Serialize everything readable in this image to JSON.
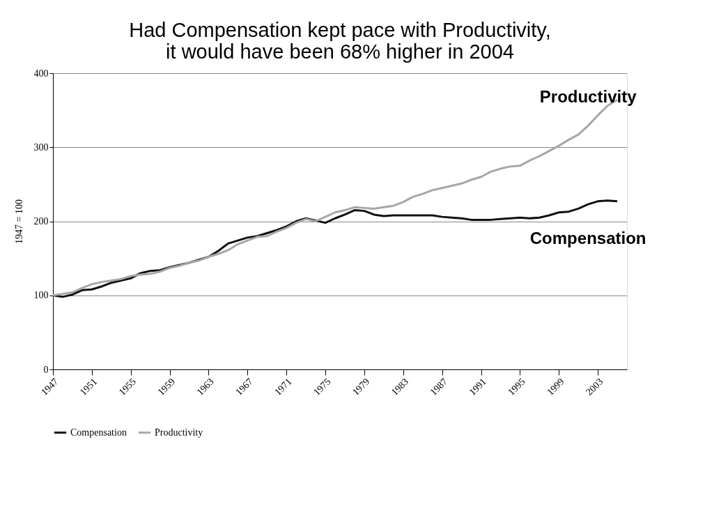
{
  "chart_data": {
    "type": "line",
    "title": [
      "Had Compensation kept pace with Productivity,",
      "it would have been 68% higher in 2004"
    ],
    "ylabel": "1947 = 100",
    "x": [
      1947,
      1948,
      1949,
      1950,
      1951,
      1952,
      1953,
      1954,
      1955,
      1956,
      1957,
      1958,
      1959,
      1960,
      1961,
      1962,
      1963,
      1964,
      1965,
      1966,
      1967,
      1968,
      1969,
      1970,
      1971,
      1972,
      1973,
      1974,
      1975,
      1976,
      1977,
      1978,
      1979,
      1980,
      1981,
      1982,
      1983,
      1984,
      1985,
      1986,
      1987,
      1988,
      1989,
      1990,
      1991,
      1992,
      1993,
      1994,
      1995,
      1996,
      1997,
      1998,
      1999,
      2000,
      2001,
      2002,
      2003,
      2004,
      2005
    ],
    "series": [
      {
        "name": "Compensation",
        "color": "#111111",
        "values": [
          100,
          98,
          101,
          107,
          108,
          112,
          117,
          120,
          123,
          130,
          133,
          134,
          138,
          141,
          144,
          148,
          152,
          160,
          170,
          174,
          178,
          180,
          184,
          188,
          193,
          200,
          204,
          201,
          198,
          204,
          209,
          215,
          214,
          209,
          207,
          208,
          208,
          208,
          208,
          208,
          206,
          205,
          204,
          202,
          202,
          202,
          203,
          204,
          205,
          204,
          205,
          208,
          212,
          213,
          217,
          223,
          227,
          228,
          227
        ]
      },
      {
        "name": "Productivity",
        "color": "#a6a6a6",
        "values": [
          100,
          102,
          104,
          110,
          115,
          118,
          120,
          122,
          126,
          128,
          129,
          132,
          137,
          140,
          144,
          147,
          152,
          156,
          161,
          169,
          174,
          179,
          180,
          186,
          191,
          198,
          203,
          200,
          206,
          212,
          215,
          219,
          218,
          217,
          219,
          221,
          226,
          233,
          237,
          242,
          245,
          248,
          251,
          256,
          260,
          267,
          271,
          274,
          275,
          282,
          288,
          295,
          302,
          310,
          317,
          329,
          343,
          356,
          364
        ]
      }
    ],
    "xlim": [
      1947,
      2006
    ],
    "xticks": [
      1947,
      1951,
      1955,
      1959,
      1963,
      1967,
      1971,
      1975,
      1979,
      1983,
      1987,
      1991,
      1995,
      1999,
      2003
    ],
    "ylim": [
      0,
      400
    ],
    "yticks": [
      0,
      100,
      200,
      300,
      400
    ],
    "grid": "y",
    "legend": "bottom left",
    "line_style": "solid",
    "marker": "none"
  }
}
